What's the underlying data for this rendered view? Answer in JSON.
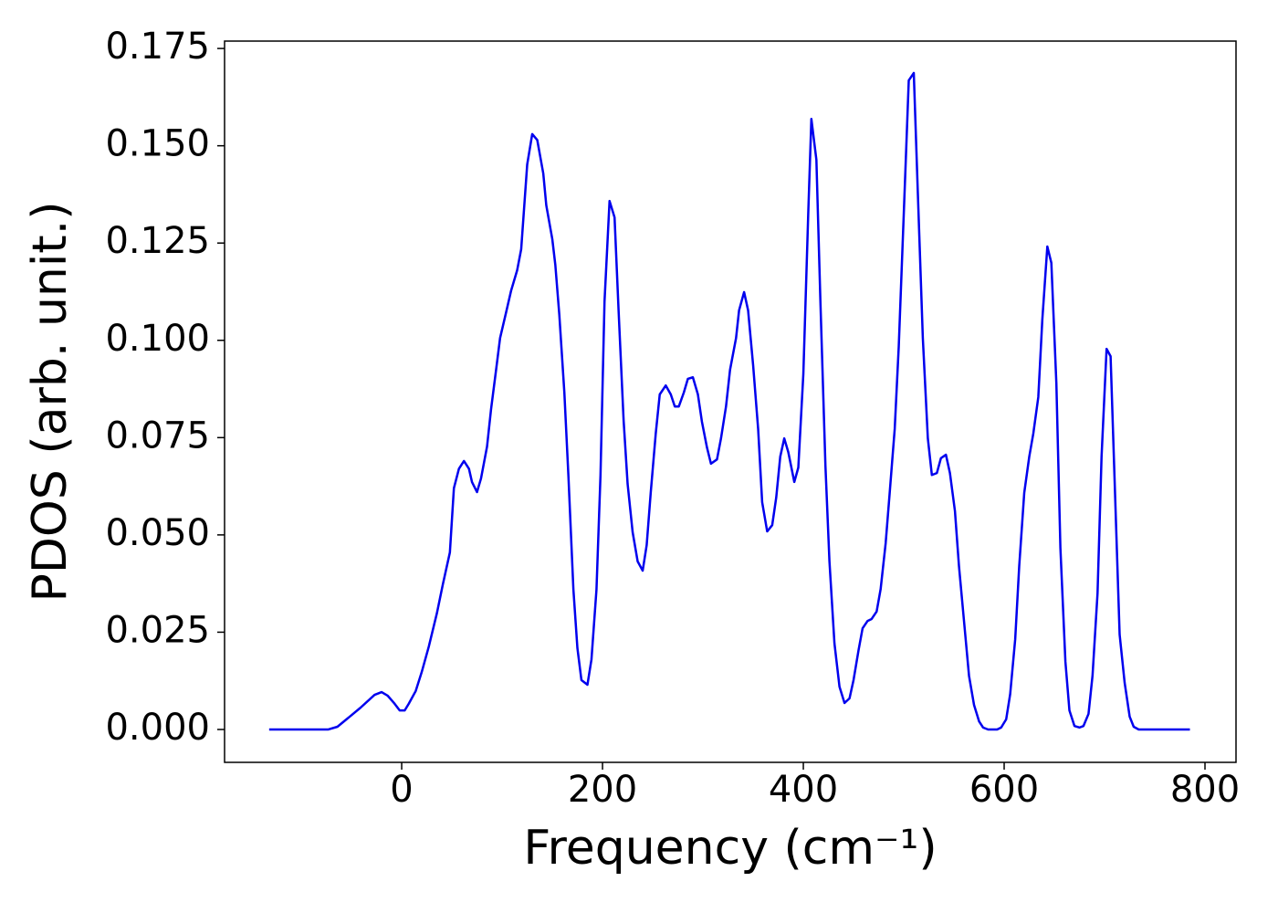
{
  "chart_data": {
    "type": "line",
    "xlabel": "Frequency (cm⁻¹)",
    "ylabel": "PDOS (arb. unit.)",
    "xlim": [
      -176.4,
      830.9
    ],
    "ylim": [
      -0.00845,
      0.1769
    ],
    "xticks": [
      0,
      200,
      400,
      600,
      800
    ],
    "yticks": [
      {
        "value": 0,
        "label": "0.000"
      },
      {
        "value": 0.025,
        "label": "0.025"
      },
      {
        "value": 0.05,
        "label": "0.050"
      },
      {
        "value": 0.075,
        "label": "0.075"
      },
      {
        "value": 0.1,
        "label": "0.100"
      },
      {
        "value": 0.125,
        "label": "0.125"
      },
      {
        "value": 0.15,
        "label": "0.150"
      },
      {
        "value": 0.175,
        "label": "0.175"
      }
    ],
    "x": [
      -132,
      -73,
      -64,
      -55,
      -41,
      -27,
      -20,
      -14,
      -7,
      -2,
      3,
      7,
      14,
      20,
      27,
      35,
      41,
      48,
      52,
      57,
      62,
      67,
      70,
      75,
      79,
      85,
      89,
      94,
      98,
      104,
      109,
      115,
      119,
      125,
      130,
      135,
      141,
      144,
      150,
      153,
      157,
      162,
      166,
      171,
      175,
      179,
      185,
      189,
      194,
      198,
      202,
      207,
      212,
      216,
      221,
      225,
      230,
      235,
      240,
      244,
      248,
      253,
      257,
      263,
      268,
      272,
      276,
      281,
      285,
      290,
      295,
      299,
      304,
      308,
      314,
      318,
      323,
      327,
      333,
      336,
      341,
      345,
      350,
      355,
      359,
      364,
      369,
      373,
      377,
      381,
      385,
      391,
      395,
      400,
      405,
      408,
      413,
      417,
      422,
      426,
      431,
      436,
      441,
      446,
      450,
      455,
      459,
      464,
      468,
      473,
      477,
      482,
      486,
      491,
      495,
      500,
      505,
      510,
      514,
      519,
      524,
      528,
      533,
      537,
      542,
      546,
      551,
      555,
      560,
      565,
      570,
      575,
      579,
      584,
      593,
      597,
      602,
      606,
      611,
      615,
      620,
      625,
      629,
      634,
      638,
      643,
      647,
      652,
      656,
      661,
      665,
      670,
      675,
      679,
      684,
      688,
      693,
      697,
      702,
      706,
      711,
      715,
      720,
      725,
      729,
      734,
      785
    ],
    "series": [
      {
        "color": "#0000ee",
        "values": [
          0,
          0,
          0.0007,
          0.0026,
          0.0056,
          0.0089,
          0.0096,
          0.0087,
          0.0066,
          0.0049,
          0.0049,
          0.0066,
          0.0099,
          0.0148,
          0.0213,
          0.0298,
          0.0373,
          0.0455,
          0.062,
          0.067,
          0.069,
          0.067,
          0.0636,
          0.061,
          0.0645,
          0.0727,
          0.0823,
          0.0924,
          0.1006,
          0.1072,
          0.1128,
          0.118,
          0.1234,
          0.1452,
          0.153,
          0.1515,
          0.1429,
          0.1347,
          0.126,
          0.1194,
          0.1065,
          0.0866,
          0.0654,
          0.036,
          0.0209,
          0.0127,
          0.0115,
          0.018,
          0.036,
          0.0654,
          0.11,
          0.1358,
          0.1316,
          0.1077,
          0.0795,
          0.0631,
          0.0507,
          0.0432,
          0.0408,
          0.0474,
          0.0608,
          0.076,
          0.0861,
          0.0884,
          0.0861,
          0.083,
          0.083,
          0.0866,
          0.0901,
          0.0905,
          0.0861,
          0.0791,
          0.0725,
          0.0683,
          0.0694,
          0.0748,
          0.083,
          0.0924,
          0.1006,
          0.1077,
          0.1124,
          0.1077,
          0.0936,
          0.0772,
          0.0584,
          0.0509,
          0.0525,
          0.0596,
          0.0701,
          0.0748,
          0.0713,
          0.0636,
          0.0673,
          0.0913,
          0.1335,
          0.1569,
          0.1464,
          0.11,
          0.0678,
          0.0432,
          0.0221,
          0.011,
          0.0068,
          0.008,
          0.0127,
          0.0204,
          0.026,
          0.0279,
          0.0284,
          0.0303,
          0.0361,
          0.0479,
          0.0608,
          0.0772,
          0.0983,
          0.1323,
          0.1668,
          0.1687,
          0.1381,
          0.1006,
          0.0748,
          0.0654,
          0.0659,
          0.0697,
          0.0706,
          0.0659,
          0.0561,
          0.042,
          0.0279,
          0.0138,
          0.0063,
          0.0021,
          0.0005,
          0,
          0,
          0.0005,
          0.0026,
          0.0091,
          0.0232,
          0.042,
          0.0608,
          0.0701,
          0.076,
          0.0854,
          0.1053,
          0.1241,
          0.1199,
          0.0889,
          0.0467,
          0.0174,
          0.0049,
          0.0009,
          0.0005,
          0.0009,
          0.004,
          0.0138,
          0.035,
          0.0701,
          0.0978,
          0.0959,
          0.0561,
          0.0244,
          0.012,
          0.0033,
          0.0007,
          0,
          0
        ]
      }
    ]
  }
}
